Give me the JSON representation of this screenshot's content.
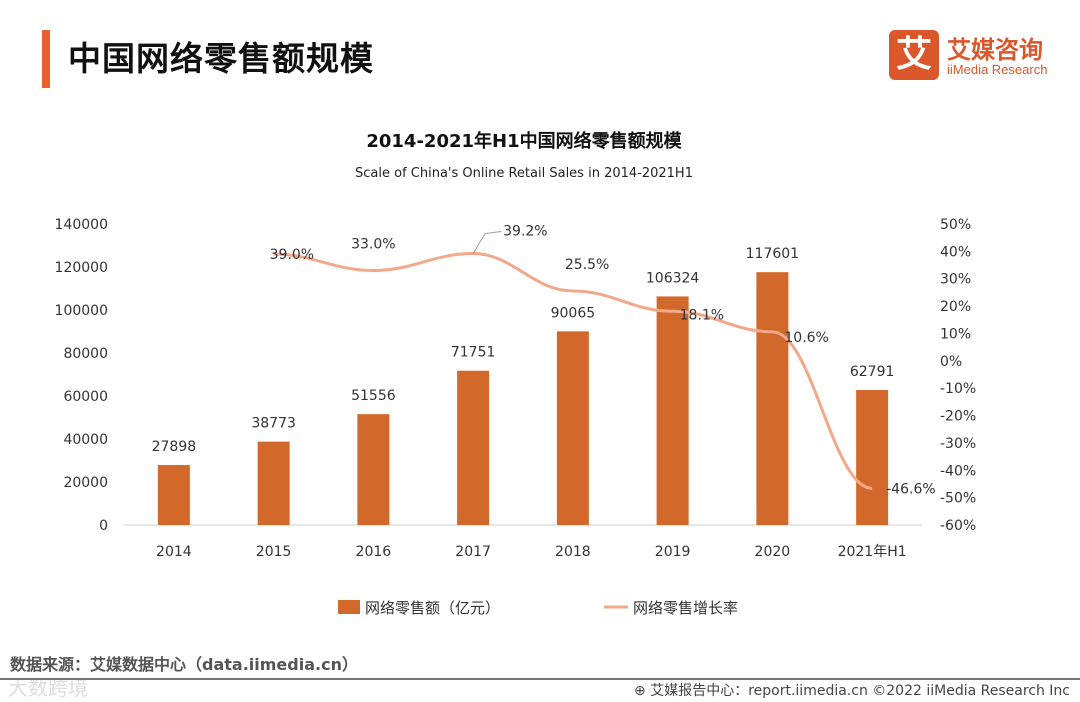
{
  "header": {
    "title": "中国网络零售额规模",
    "logo_mark": "艾",
    "logo_cn": "艾媒咨询",
    "logo_en": "iiMedia Research"
  },
  "chart_data": {
    "type": "bar+line",
    "title": "2014-2021年H1中国网络零售额规模",
    "subtitle": "Scale of China's Online Retail Sales in 2014-2021H1",
    "categories": [
      "2014",
      "2015",
      "2016",
      "2017",
      "2018",
      "2019",
      "2020",
      "2021年H1"
    ],
    "series": [
      {
        "name": "网络零售额（亿元）",
        "type": "bar",
        "axis": "left",
        "color": "#d2692a",
        "values": [
          27898,
          38773,
          51556,
          71751,
          90065,
          106324,
          117601,
          62791
        ]
      },
      {
        "name": "网络零售增长率",
        "type": "line",
        "axis": "right",
        "color": "#f2a88a",
        "values": [
          null,
          39.0,
          33.0,
          39.2,
          25.5,
          18.1,
          10.6,
          -46.6
        ]
      }
    ],
    "left_axis": {
      "ylim": [
        0,
        140000
      ],
      "ticks": [
        "0",
        "20000",
        "40000",
        "60000",
        "80000",
        "100000",
        "120000",
        "140000"
      ]
    },
    "right_axis": {
      "ylim": [
        -60,
        50
      ],
      "ticks": [
        "-60%",
        "-50%",
        "-40%",
        "-30%",
        "-20%",
        "-10%",
        "0%",
        "10%",
        "20%",
        "30%",
        "40%",
        "50%"
      ]
    },
    "legend": "bottom"
  },
  "footer": {
    "source": "数据来源：艾媒数据中心（data.iimedia.cn）",
    "credit": "⊕ 艾媒报告中心：report.iimedia.cn   ©2022  iiMedia Research  Inc",
    "watermark": "大数跨境"
  }
}
